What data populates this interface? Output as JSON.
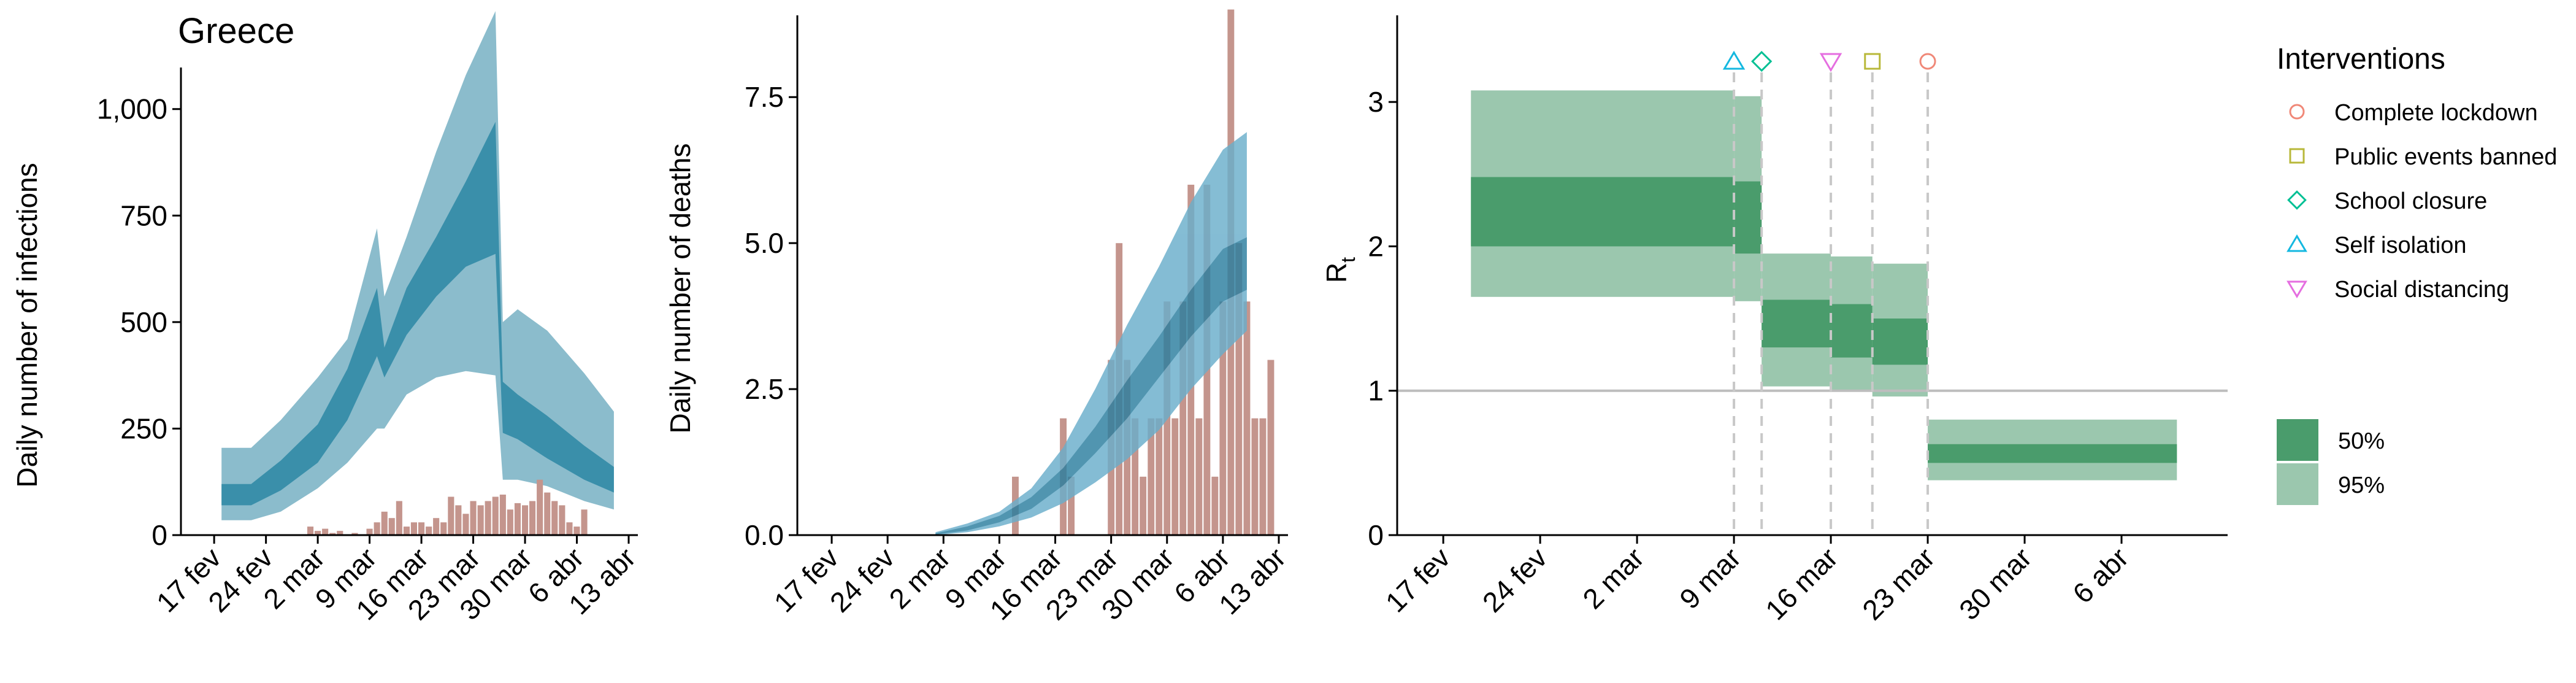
{
  "colors": {
    "infections_95": "#8bbccc",
    "infections_50": "#3a8faa",
    "deaths_95": "#6aaecb",
    "deaths_50": "#2c7e9f",
    "observed_bars": "#c4958d",
    "rt_95": "#9bc7ae",
    "rt_50": "#4a9c6c",
    "threshold_line": "#bdbdbd",
    "intervention_line": "#c8c8c8",
    "lockdown": "#f08878",
    "public_events": "#b8b83a",
    "school_closure": "#00c094",
    "self_isolation": "#14b8e0",
    "social_distancing": "#e56ee0"
  },
  "chart_data": [
    {
      "id": "infections",
      "type": "area",
      "title": "Greece",
      "ylabel": "Daily number of infections",
      "xlabel": "",
      "xlim": [
        "2020-02-15",
        "2020-04-13"
      ],
      "ylim": [
        0,
        1220
      ],
      "x_ticks": [
        {
          "date": "2020-02-17",
          "label": "17 fev"
        },
        {
          "date": "2020-02-24",
          "label": "24 fev"
        },
        {
          "date": "2020-03-02",
          "label": "2 mar"
        },
        {
          "date": "2020-03-09",
          "label": "9 mar"
        },
        {
          "date": "2020-03-16",
          "label": "16 mar"
        },
        {
          "date": "2020-03-23",
          "label": "23 mar"
        },
        {
          "date": "2020-03-30",
          "label": "30 mar"
        },
        {
          "date": "2020-04-06",
          "label": "6 abr"
        },
        {
          "date": "2020-04-13",
          "label": "13 abr"
        }
      ],
      "y_ticks": [
        {
          "value": 0,
          "label": "0"
        },
        {
          "value": 250,
          "label": "250"
        },
        {
          "value": 500,
          "label": "500"
        },
        {
          "value": 750,
          "label": "750"
        },
        {
          "value": 1000,
          "label": "1,000"
        }
      ],
      "series": [
        {
          "kind": "ribbon_95",
          "points": [
            {
              "date": "2020-02-18",
              "low": 35,
              "high": 205
            },
            {
              "date": "2020-02-22",
              "low": 35,
              "high": 205
            },
            {
              "date": "2020-02-26",
              "low": 55,
              "high": 270
            },
            {
              "date": "2020-03-02",
              "low": 110,
              "high": 370
            },
            {
              "date": "2020-03-06",
              "low": 170,
              "high": 460
            },
            {
              "date": "2020-03-10",
              "low": 250,
              "high": 720
            },
            {
              "date": "2020-03-11",
              "low": 250,
              "high": 560
            },
            {
              "date": "2020-03-14",
              "low": 330,
              "high": 700
            },
            {
              "date": "2020-03-18",
              "low": 370,
              "high": 900
            },
            {
              "date": "2020-03-22",
              "low": 385,
              "high": 1080
            },
            {
              "date": "2020-03-26",
              "low": 375,
              "high": 1230
            },
            {
              "date": "2020-03-27",
              "low": 130,
              "high": 500
            },
            {
              "date": "2020-03-29",
              "low": 130,
              "high": 530
            },
            {
              "date": "2020-04-02",
              "low": 115,
              "high": 480
            },
            {
              "date": "2020-04-07",
              "low": 80,
              "high": 380
            },
            {
              "date": "2020-04-11",
              "low": 60,
              "high": 290
            }
          ]
        },
        {
          "kind": "ribbon_50",
          "points": [
            {
              "date": "2020-02-18",
              "low": 70,
              "high": 120
            },
            {
              "date": "2020-02-22",
              "low": 70,
              "high": 120
            },
            {
              "date": "2020-02-26",
              "low": 105,
              "high": 175
            },
            {
              "date": "2020-03-02",
              "low": 170,
              "high": 260
            },
            {
              "date": "2020-03-06",
              "low": 270,
              "high": 390
            },
            {
              "date": "2020-03-10",
              "low": 420,
              "high": 580
            },
            {
              "date": "2020-03-11",
              "low": 370,
              "high": 440
            },
            {
              "date": "2020-03-14",
              "low": 470,
              "high": 580
            },
            {
              "date": "2020-03-18",
              "low": 560,
              "high": 700
            },
            {
              "date": "2020-03-22",
              "low": 630,
              "high": 830
            },
            {
              "date": "2020-03-26",
              "low": 660,
              "high": 970
            },
            {
              "date": "2020-03-27",
              "low": 240,
              "high": 360
            },
            {
              "date": "2020-03-29",
              "low": 225,
              "high": 330
            },
            {
              "date": "2020-04-02",
              "low": 180,
              "high": 280
            },
            {
              "date": "2020-04-07",
              "low": 130,
              "high": 210
            },
            {
              "date": "2020-04-11",
              "low": 100,
              "high": 160
            }
          ]
        }
      ],
      "bars": {
        "start": "2020-02-26",
        "values": [
          0,
          0,
          0,
          0,
          20,
          10,
          15,
          5,
          10,
          0,
          5,
          0,
          15,
          30,
          55,
          40,
          80,
          20,
          30,
          30,
          20,
          40,
          30,
          90,
          70,
          50,
          80,
          70,
          80,
          90,
          95,
          60,
          75,
          70,
          80,
          130,
          100,
          80,
          70,
          30,
          20,
          60
        ]
      }
    },
    {
      "id": "deaths",
      "type": "area",
      "title": "",
      "ylabel": "Daily number of deaths",
      "xlabel": "",
      "xlim": [
        "2020-02-15",
        "2020-04-13"
      ],
      "ylim": [
        0,
        8.9
      ],
      "x_ticks": [
        {
          "date": "2020-02-17",
          "label": "17 fev"
        },
        {
          "date": "2020-02-24",
          "label": "24 fev"
        },
        {
          "date": "2020-03-02",
          "label": "2 mar"
        },
        {
          "date": "2020-03-09",
          "label": "9 mar"
        },
        {
          "date": "2020-03-16",
          "label": "16 mar"
        },
        {
          "date": "2020-03-23",
          "label": "23 mar"
        },
        {
          "date": "2020-03-30",
          "label": "30 mar"
        },
        {
          "date": "2020-04-06",
          "label": "6 abr"
        },
        {
          "date": "2020-04-13",
          "label": "13 abr"
        }
      ],
      "y_ticks": [
        {
          "value": 0,
          "label": "0.0"
        },
        {
          "value": 2.5,
          "label": "2.5"
        },
        {
          "value": 5,
          "label": "5.0"
        },
        {
          "value": 7.5,
          "label": "7.5"
        }
      ],
      "series": [
        {
          "kind": "ribbon_95",
          "points": [
            {
              "date": "2020-03-01",
              "low": 0.0,
              "high": 0.05
            },
            {
              "date": "2020-03-05",
              "low": 0.05,
              "high": 0.2
            },
            {
              "date": "2020-03-09",
              "low": 0.15,
              "high": 0.4
            },
            {
              "date": "2020-03-13",
              "low": 0.3,
              "high": 0.8
            },
            {
              "date": "2020-03-17",
              "low": 0.55,
              "high": 1.5
            },
            {
              "date": "2020-03-21",
              "low": 0.9,
              "high": 2.5
            },
            {
              "date": "2020-03-25",
              "low": 1.3,
              "high": 3.6
            },
            {
              "date": "2020-03-29",
              "low": 1.8,
              "high": 4.6
            },
            {
              "date": "2020-04-02",
              "low": 2.5,
              "high": 5.7
            },
            {
              "date": "2020-04-06",
              "low": 3.1,
              "high": 6.6
            },
            {
              "date": "2020-04-09",
              "low": 3.5,
              "high": 6.9
            }
          ]
        },
        {
          "kind": "ribbon_50",
          "points": [
            {
              "date": "2020-03-01",
              "low": 0.01,
              "high": 0.03
            },
            {
              "date": "2020-03-05",
              "low": 0.08,
              "high": 0.15
            },
            {
              "date": "2020-03-09",
              "low": 0.22,
              "high": 0.33
            },
            {
              "date": "2020-03-13",
              "low": 0.45,
              "high": 0.65
            },
            {
              "date": "2020-03-17",
              "low": 0.85,
              "high": 1.15
            },
            {
              "date": "2020-03-21",
              "low": 1.4,
              "high": 1.85
            },
            {
              "date": "2020-03-25",
              "low": 2.0,
              "high": 2.65
            },
            {
              "date": "2020-03-29",
              "low": 2.7,
              "high": 3.4
            },
            {
              "date": "2020-04-02",
              "low": 3.4,
              "high": 4.2
            },
            {
              "date": "2020-04-06",
              "low": 4.0,
              "high": 4.9
            },
            {
              "date": "2020-04-09",
              "low": 4.2,
              "high": 5.1
            }
          ]
        }
      ],
      "bars": {
        "start": "2020-03-11",
        "values": [
          1,
          0,
          0,
          0,
          0,
          0,
          2,
          1,
          0,
          0,
          0,
          0,
          3,
          5,
          3,
          2,
          1,
          2,
          2,
          4,
          2,
          4,
          6,
          2,
          6,
          1,
          4,
          9,
          5,
          4,
          2,
          2,
          3
        ]
      }
    },
    {
      "id": "rt",
      "type": "step-ribbon",
      "title": "",
      "ylabel": "R",
      "ylabel_sub": "t",
      "xlabel": "",
      "xlim": [
        "2020-02-15",
        "2020-04-13"
      ],
      "ylim": [
        0,
        3.6
      ],
      "x_ticks": [
        {
          "date": "2020-02-17",
          "label": "17 fev"
        },
        {
          "date": "2020-02-24",
          "label": "24 fev"
        },
        {
          "date": "2020-03-02",
          "label": "2 mar"
        },
        {
          "date": "2020-03-09",
          "label": "9 mar"
        },
        {
          "date": "2020-03-16",
          "label": "16 mar"
        },
        {
          "date": "2020-03-23",
          "label": "23 mar"
        },
        {
          "date": "2020-03-30",
          "label": "30 mar"
        },
        {
          "date": "2020-04-06",
          "label": "6 abr"
        }
      ],
      "y_ticks": [
        {
          "value": 0,
          "label": "0"
        },
        {
          "value": 1,
          "label": "1"
        },
        {
          "value": 2,
          "label": "2"
        },
        {
          "value": 3,
          "label": "3"
        }
      ],
      "threshold": 1,
      "segments": [
        {
          "start": "2020-02-19",
          "end": "2020-03-09",
          "low95": 1.65,
          "high95": 3.08,
          "low50": 2.0,
          "high50": 2.48
        },
        {
          "start": "2020-03-09",
          "end": "2020-03-11",
          "low95": 1.62,
          "high95": 3.04,
          "low50": 1.95,
          "high50": 2.45
        },
        {
          "start": "2020-03-11",
          "end": "2020-03-16",
          "low95": 1.03,
          "high95": 1.95,
          "low50": 1.3,
          "high50": 1.63
        },
        {
          "start": "2020-03-16",
          "end": "2020-03-19",
          "low95": 1.0,
          "high95": 1.93,
          "low50": 1.23,
          "high50": 1.6
        },
        {
          "start": "2020-03-19",
          "end": "2020-03-23",
          "low95": 0.96,
          "high95": 1.88,
          "low50": 1.18,
          "high50": 1.5
        },
        {
          "start": "2020-03-23",
          "end": "2020-04-10",
          "low95": 0.38,
          "high95": 0.8,
          "low50": 0.5,
          "high50": 0.63
        }
      ],
      "interventions": [
        {
          "key": "self_isolation",
          "date": "2020-03-09",
          "marker": "triangle-up"
        },
        {
          "key": "school_closure",
          "date": "2020-03-11",
          "marker": "diamond"
        },
        {
          "key": "social_distancing",
          "date": "2020-03-16",
          "marker": "triangle-down"
        },
        {
          "key": "public_events",
          "date": "2020-03-19",
          "marker": "square"
        },
        {
          "key": "lockdown",
          "date": "2020-03-23",
          "marker": "circle"
        }
      ]
    }
  ],
  "legend": {
    "title": "Interventions",
    "items": [
      {
        "key": "lockdown",
        "label": "Complete lockdown",
        "marker": "circle"
      },
      {
        "key": "public_events",
        "label": "Public events banned",
        "marker": "square"
      },
      {
        "key": "school_closure",
        "label": "School closure",
        "marker": "diamond"
      },
      {
        "key": "self_isolation",
        "label": "Self isolation",
        "marker": "triangle-up"
      },
      {
        "key": "social_distancing",
        "label": "Social distancing",
        "marker": "triangle-down"
      }
    ],
    "bands": [
      {
        "key": "rt_50",
        "label": "50%"
      },
      {
        "key": "rt_95",
        "label": "95%"
      }
    ]
  }
}
